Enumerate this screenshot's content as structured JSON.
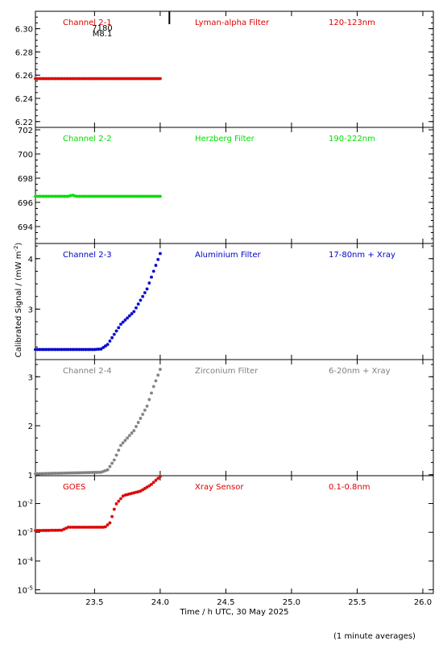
{
  "chart_data": {
    "type": "scatter",
    "xlabel": "Time / h UTC, 30 May 2025",
    "ylabel": "Calibrated Signal / (mW m^-2)",
    "ylabel_parts": {
      "base": "Calibrated Signal / (mW m",
      "exp": "-2",
      "close": ")"
    },
    "note": "(1 minute averages)",
    "xlim": [
      23.05,
      26.08
    ],
    "xticks": [
      "23.5",
      "24.0",
      "24.5",
      "25.0",
      "25.5",
      "26.0"
    ],
    "flare_marker": {
      "x": 24.07,
      "class": "M8.1",
      "number": "7180",
      "color": "#000000"
    },
    "panels": [
      {
        "channel": "Channel 2-1",
        "filter": "Lyman-alpha Filter",
        "band": "120-123nm",
        "color": "#dd0000",
        "scale": "linear",
        "ylim": [
          6.215,
          6.315
        ],
        "yticks": [
          "6.22",
          "6.24",
          "6.26",
          "6.28",
          "6.30"
        ],
        "series": {
          "x": [
            23.05,
            23.6,
            24.0
          ],
          "y": [
            6.257,
            6.257,
            6.257
          ]
        }
      },
      {
        "channel": "Channel 2-2",
        "filter": "Herzberg Filter",
        "band": "190-222nm",
        "color": "#00dd00",
        "scale": "linear",
        "ylim": [
          692.6,
          702.2
        ],
        "yticks": [
          "694",
          "696",
          "698",
          "700",
          "702"
        ],
        "series": {
          "x": [
            23.05,
            23.3,
            23.33,
            23.36,
            23.6,
            24.0
          ],
          "y": [
            696.5,
            696.5,
            696.6,
            696.5,
            696.5,
            696.5
          ]
        }
      },
      {
        "channel": "Channel 2-3",
        "filter": "Aluminium Filter",
        "band": "17-80nm + Xray",
        "color": "#0000cc",
        "scale": "linear",
        "ylim": [
          2.0,
          4.3
        ],
        "yticks": [
          "3",
          "4"
        ],
        "series": {
          "x": [
            23.05,
            23.5,
            23.55,
            23.6,
            23.65,
            23.7,
            23.8,
            23.9,
            23.95,
            24.0
          ],
          "y": [
            2.2,
            2.2,
            2.21,
            2.3,
            2.5,
            2.7,
            2.95,
            3.4,
            3.75,
            4.1
          ]
        }
      },
      {
        "channel": "Channel 2-4",
        "filter": "Zirconium Filter",
        "band": "6-20nm + Xray",
        "color": "#808080",
        "scale": "linear",
        "ylim": [
          0.98,
          3.35
        ],
        "yticks": [
          "1",
          "2",
          "3"
        ],
        "series": {
          "x": [
            23.05,
            23.55,
            23.6,
            23.65,
            23.7,
            23.8,
            23.9,
            23.95,
            24.0
          ],
          "y": [
            1.02,
            1.05,
            1.1,
            1.3,
            1.6,
            1.9,
            2.4,
            2.8,
            3.15
          ]
        }
      },
      {
        "channel": "GOES",
        "filter": "Xray Sensor",
        "band": "0.1-0.8nm",
        "color": "#dd0000",
        "scale": "log",
        "ylim": [
          7.5e-06,
          0.093
        ],
        "yticks": [
          {
            "base": "10",
            "exp": "-5",
            "value": 1e-05
          },
          {
            "base": "10",
            "exp": "-4",
            "value": 0.0001
          },
          {
            "base": "10",
            "exp": "-3",
            "value": 0.001
          },
          {
            "base": "10",
            "exp": "-2",
            "value": 0.01
          }
        ],
        "series": {
          "x": [
            23.05,
            23.25,
            23.3,
            23.58,
            23.62,
            23.66,
            23.72,
            23.85,
            23.93,
            24.0
          ],
          "y": [
            0.00115,
            0.00118,
            0.0015,
            0.0015,
            0.0022,
            0.009,
            0.019,
            0.027,
            0.045,
            0.088
          ]
        }
      }
    ]
  }
}
